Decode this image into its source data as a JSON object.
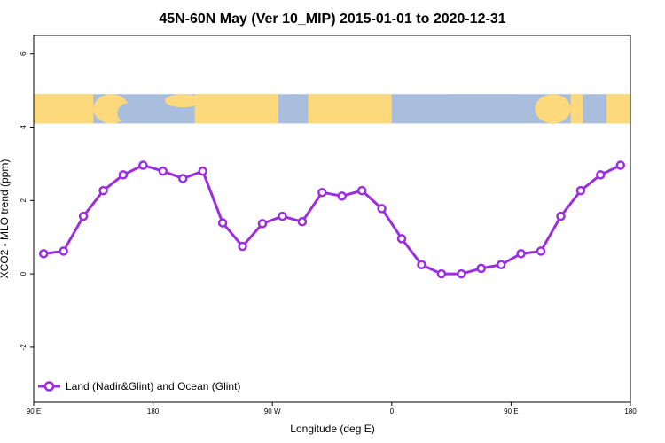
{
  "chart_data": {
    "type": "line",
    "title": "45N-60N May (Ver 10_MIP)   2015-01-01 to 2020-12-31",
    "xlabel": "Longitude (deg E)",
    "ylabel": "XCO2 - MLO trend (ppm)",
    "x_ticks": [
      {
        "value": 90,
        "label": "90 E"
      },
      {
        "value": 180,
        "label": "180"
      },
      {
        "value": 270,
        "label": "90 W"
      },
      {
        "value": 360,
        "label": "0"
      },
      {
        "value": 450,
        "label": "90 E"
      },
      {
        "value": 540,
        "label": "180"
      }
    ],
    "y_ticks": [
      {
        "value": -2,
        "label": "-2"
      },
      {
        "value": 0,
        "label": "0"
      },
      {
        "value": 2,
        "label": "2"
      },
      {
        "value": 4,
        "label": "4"
      },
      {
        "value": 6,
        "label": "6"
      }
    ],
    "xlim": [
      90,
      540
    ],
    "ylim": [
      -3.5,
      6.5
    ],
    "grid": false,
    "legend_position": "bottom-left",
    "map_band": {
      "ymin": 4.1,
      "ymax": 4.9,
      "ocean_color": "#a8bedc",
      "land_color": "#fcd97a"
    },
    "series": [
      {
        "name": "Land (Nadir&Glint) and Ocean (Glint)",
        "color": "#9b2ee0",
        "x": [
          97.5,
          112.5,
          127.5,
          142.5,
          157.5,
          172.5,
          187.5,
          202.5,
          217.5,
          232.5,
          247.5,
          262.5,
          277.5,
          292.5,
          307.5,
          322.5,
          337.5,
          352.5,
          367.5,
          382.5,
          397.5,
          412.5,
          427.5,
          442.5,
          457.5,
          472.5,
          487.5,
          502.5,
          517.5,
          532.5
        ],
        "y": [
          0.55,
          0.62,
          1.57,
          2.27,
          2.7,
          2.96,
          2.8,
          2.6,
          2.8,
          1.39,
          0.75,
          1.37,
          1.57,
          1.42,
          2.22,
          2.12,
          2.27,
          1.78,
          0.96,
          0.25,
          0.0,
          0.0,
          0.15,
          0.25,
          0.55,
          0.62,
          1.57,
          2.27,
          2.7,
          2.96
        ]
      }
    ]
  }
}
